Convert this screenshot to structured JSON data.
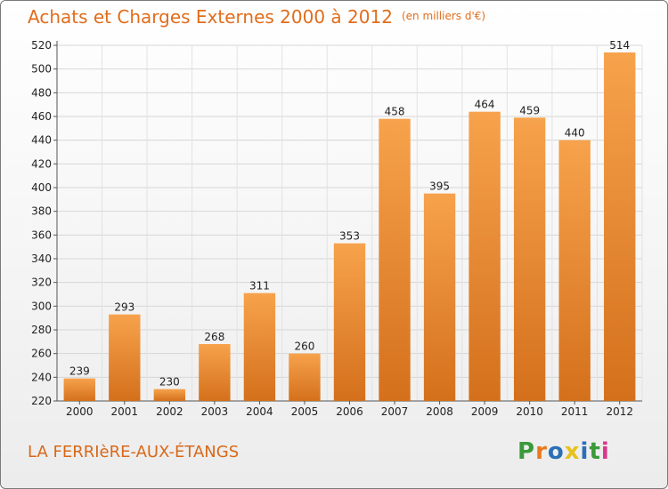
{
  "title": "Achats et Charges Externes 2000 à 2012",
  "unit": "(en milliers d'€)",
  "commune": "LA FERRIèRE-AUX-ÉTANGS",
  "logo": {
    "letters": [
      "P",
      "r",
      "o",
      "x",
      "i",
      "t",
      "i"
    ],
    "colors": [
      "#3a9a3a",
      "#e87a1c",
      "#2a6fb8",
      "#e8c21c",
      "#2a6fb8",
      "#3a9a3a",
      "#d83a8a"
    ]
  },
  "colors": {
    "bar_light": "#f7a24c",
    "bar_dark": "#d4701c",
    "title": "#e06d1c"
  },
  "chart_data": {
    "type": "bar",
    "categories": [
      "2000",
      "2001",
      "2002",
      "2003",
      "2004",
      "2005",
      "2006",
      "2007",
      "2008",
      "2009",
      "2010",
      "2011",
      "2012"
    ],
    "values": [
      239,
      293,
      230,
      268,
      311,
      260,
      353,
      458,
      395,
      464,
      459,
      440,
      514
    ],
    "ylim": [
      220,
      520
    ],
    "yticks": [
      220,
      240,
      260,
      280,
      300,
      320,
      340,
      360,
      380,
      400,
      420,
      440,
      460,
      480,
      500,
      520
    ],
    "grid": true
  }
}
